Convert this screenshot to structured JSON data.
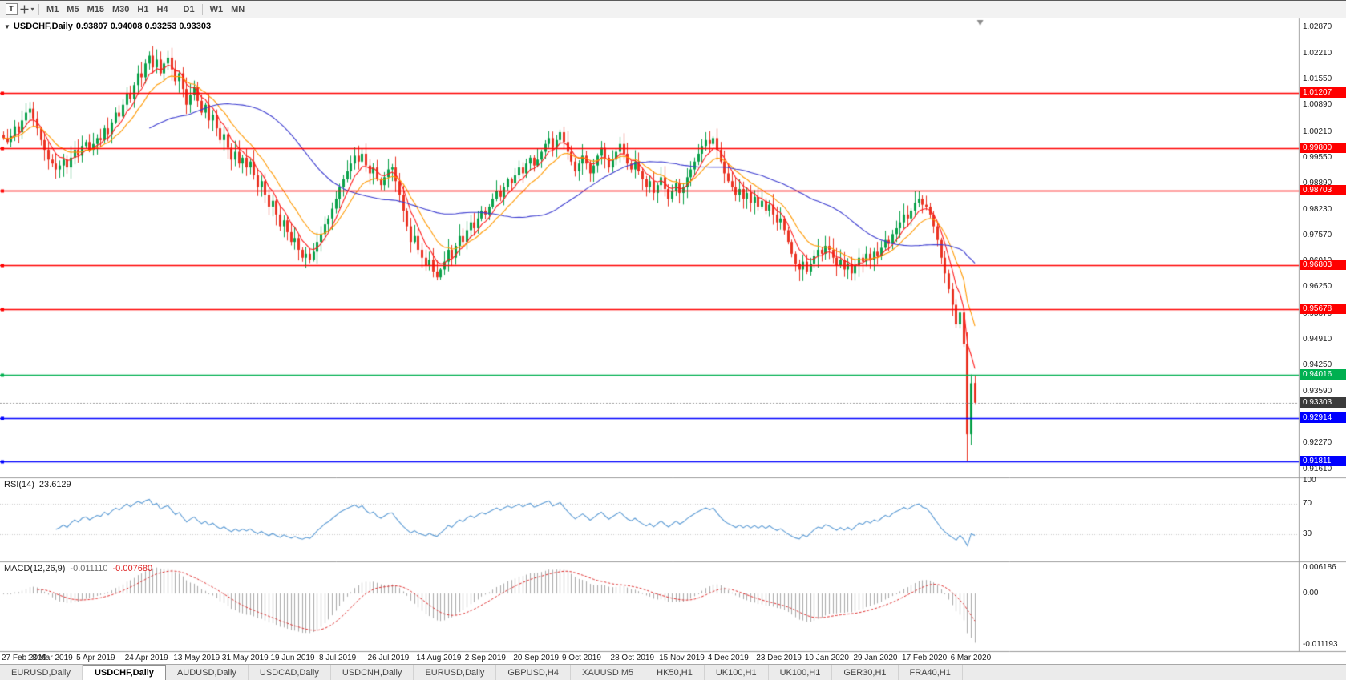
{
  "icons": {
    "collapse": "▼",
    "caret": "▾",
    "crosshair": "+"
  },
  "toolbar": {
    "tools": [
      {
        "id": "text-tool",
        "label": "T"
      },
      {
        "id": "crosshair-tool",
        "label": "+"
      }
    ],
    "timeframes": [
      "M1",
      "M5",
      "M15",
      "M30",
      "H1",
      "H4",
      "D1",
      "W1",
      "MN"
    ]
  },
  "chart": {
    "symbol_label": "USDCHF,Daily",
    "ohlc_label": "0.93807 0.94008 0.93253 0.93303"
  },
  "price_axis": {
    "labels": [
      "1.02870",
      "1.02210",
      "1.01550",
      "1.00890",
      "1.00210",
      "0.99550",
      "0.98890",
      "0.98230",
      "0.97570",
      "0.96910",
      "0.96250",
      "0.95570",
      "0.94910",
      "0.94250",
      "0.93590",
      "0.92930",
      "0.92270",
      "0.91610"
    ]
  },
  "levels": [
    {
      "label": "1.01207",
      "value": 1.01207,
      "color": "#ff0000",
      "kind": "resistance"
    },
    {
      "label": "0.99800",
      "value": 0.998,
      "color": "#ff0000",
      "kind": "resistance"
    },
    {
      "label": "0.98703",
      "value": 0.98703,
      "color": "#ff0000",
      "kind": "resistance"
    },
    {
      "label": "0.96803",
      "value": 0.96803,
      "color": "#ff0000",
      "kind": "resistance"
    },
    {
      "label": "0.95678",
      "value": 0.95678,
      "color": "#ff0000",
      "kind": "resistance"
    },
    {
      "label": "0.94016",
      "value": 0.94016,
      "color": "#00b050",
      "kind": "support"
    },
    {
      "label": "0.92914",
      "value": 0.92914,
      "color": "#0000ff",
      "kind": "support"
    },
    {
      "label": "0.91811",
      "value": 0.91811,
      "color": "#0000ff",
      "kind": "support"
    }
  ],
  "current_price": {
    "label": "0.93303",
    "value": 0.93303,
    "tag_color": "#3b3b3b"
  },
  "rsi": {
    "label": "RSI(14)",
    "value": "23.6129",
    "axis_labels": [
      "100",
      "70",
      "30"
    ],
    "levels": [
      70,
      30
    ],
    "color": "#5b9bd5",
    "range": [
      0,
      100
    ]
  },
  "macd": {
    "label": "MACD(12,26,9)",
    "value": "-0.011110",
    "signal_value": "-0.007680",
    "axis_top": "0.006186",
    "axis_zero": "0.00",
    "axis_bottom": "-0.011193",
    "histogram_color": "#a9a9a9",
    "signal_color": "#e03131"
  },
  "dates": [
    "27 Feb 2019",
    "18 Mar 2019",
    "5 Apr 2019",
    "24 Apr 2019",
    "13 May 2019",
    "31 May 2019",
    "19 Jun 2019",
    "8 Jul 2019",
    "26 Jul 2019",
    "14 Aug 2019",
    "2 Sep 2019",
    "20 Sep 2019",
    "9 Oct 2019",
    "28 Oct 2019",
    "15 Nov 2019",
    "4 Dec 2019",
    "23 Dec 2019",
    "10 Jan 2020",
    "29 Jan 2020",
    "17 Feb 2020",
    "6 Mar 2020"
  ],
  "tabs": [
    {
      "label": "EURUSD,Daily"
    },
    {
      "label": "USDCHF,Daily",
      "active": true
    },
    {
      "label": "AUDUSD,Daily"
    },
    {
      "label": "USDCAD,Daily"
    },
    {
      "label": "USDCNH,Daily"
    },
    {
      "label": "EURUSD,Daily"
    },
    {
      "label": "GBPUSD,H4"
    },
    {
      "label": "XAUUSD,M5"
    },
    {
      "label": "HK50,H1"
    },
    {
      "label": "UK100,H1"
    },
    {
      "label": "UK100,H1"
    },
    {
      "label": "GER30,H1"
    },
    {
      "label": "FRA40,H1"
    }
  ],
  "chart_data": {
    "type": "candlestick",
    "symbol": "USDCHF",
    "timeframe": "Daily",
    "title": "USDCHF,Daily",
    "last_candle": {
      "open": 0.93807,
      "high": 0.94008,
      "low": 0.93253,
      "close": 0.93303
    },
    "y_range": [
      0.914,
      1.031
    ],
    "x_label_every": 13,
    "colors": {
      "up": "#0aa14a",
      "down": "#ea3323"
    },
    "moving_averages": [
      {
        "period": 6,
        "type": "ema",
        "color": "#ff1a1a"
      },
      {
        "period": 13,
        "type": "ema",
        "color": "#ff9900"
      },
      {
        "period": 40,
        "type": "sma",
        "color": "#3b3bd0"
      }
    ],
    "indicators": [
      {
        "name": "RSI",
        "period": 14,
        "value": 23.6129
      },
      {
        "name": "MACD",
        "fast": 12,
        "slow": 26,
        "signal": 9,
        "value": -0.01111,
        "signal_value": -0.00768
      }
    ],
    "closes": [
      1.0005,
      0.9995,
      1.001,
      1.0035,
      1.002,
      1.005,
      1.007,
      1.008,
      1.0055,
      1.003,
      1.0,
      0.9975,
      0.995,
      0.994,
      0.9925,
      0.9935,
      0.995,
      0.993,
      0.9955,
      0.9975,
      0.996,
      0.9985,
      0.9995,
      0.9975,
      0.999,
      1.0005,
      1.0,
      1.003,
      1.0015,
      1.0045,
      1.007,
      1.006,
      1.009,
      1.012,
      1.0105,
      1.014,
      1.017,
      1.016,
      1.0195,
      1.0215,
      1.0185,
      1.0205,
      1.017,
      1.0195,
      1.021,
      1.018,
      1.015,
      1.017,
      1.013,
      1.009,
      1.0115,
      1.0135,
      1.01,
      1.007,
      1.009,
      1.005,
      1.0065,
      1.003,
      1.0,
      1.0015,
      0.998,
      0.995,
      0.997,
      0.994,
      0.9955,
      0.993,
      0.9945,
      0.991,
      0.988,
      0.9895,
      0.986,
      0.983,
      0.9845,
      0.981,
      0.978,
      0.9795,
      0.9765,
      0.974,
      0.975,
      0.972,
      0.97,
      0.971,
      0.9695,
      0.9715,
      0.974,
      0.976,
      0.9785,
      0.98,
      0.9825,
      0.985,
      0.988,
      0.99,
      0.992,
      0.994,
      0.996,
      0.9945,
      0.9965,
      0.9935,
      0.9915,
      0.993,
      0.99,
      0.9885,
      0.9905,
      0.9925,
      0.993,
      0.9895,
      0.986,
      0.982,
      0.978,
      0.974,
      0.9755,
      0.972,
      0.97,
      0.968,
      0.9695,
      0.9665,
      0.965,
      0.967,
      0.969,
      0.972,
      0.97,
      0.973,
      0.9755,
      0.974,
      0.977,
      0.979,
      0.9775,
      0.98,
      0.982,
      0.981,
      0.983,
      0.985,
      0.987,
      0.9855,
      0.988,
      0.99,
      0.989,
      0.991,
      0.993,
      0.9915,
      0.994,
      0.9955,
      0.9935,
      0.995,
      0.997,
      0.999,
      1.0005,
      0.998,
      1.0,
      1.002,
      0.9995,
      0.997,
      0.9945,
      0.992,
      0.994,
      0.996,
      0.994,
      0.9915,
      0.9935,
      0.996,
      0.998,
      0.9955,
      0.993,
      0.995,
      0.997,
      0.999,
      0.9965,
      0.994,
      0.9925,
      0.9945,
      0.992,
      0.99,
      0.988,
      0.9895,
      0.9865,
      0.9885,
      0.9905,
      0.9875,
      0.985,
      0.987,
      0.989,
      0.9865,
      0.988,
      0.9905,
      0.9925,
      0.9945,
      0.9965,
      0.9985,
      1.0,
      0.999,
      1.0005,
      0.9975,
      0.9945,
      0.9915,
      0.9895,
      0.988,
      0.986,
      0.9875,
      0.985,
      0.9865,
      0.984,
      0.9855,
      0.983,
      0.9845,
      0.982,
      0.9835,
      0.981,
      0.979,
      0.98,
      0.977,
      0.974,
      0.971,
      0.9685,
      0.967,
      0.969,
      0.9665,
      0.9685,
      0.9705,
      0.972,
      0.971,
      0.973,
      0.972,
      0.97,
      0.968,
      0.9695,
      0.967,
      0.9685,
      0.966,
      0.968,
      0.97,
      0.969,
      0.971,
      0.9695,
      0.9715,
      0.9705,
      0.9725,
      0.9745,
      0.9735,
      0.976,
      0.9775,
      0.979,
      0.981,
      0.98,
      0.982,
      0.984,
      0.985,
      0.9835,
      0.983,
      0.981,
      0.978,
      0.9745,
      0.97,
      0.966,
      0.962,
      0.958,
      0.953,
      0.956,
      0.948,
      0.925,
      0.938,
      0.93303
    ],
    "overrides": {
      "258": {
        "low": 0.91811
      },
      "259": {
        "high": 0.9402
      },
      "260": {
        "open": 0.93807,
        "high": 0.94008,
        "low": 0.93253,
        "close": 0.93303
      }
    }
  }
}
